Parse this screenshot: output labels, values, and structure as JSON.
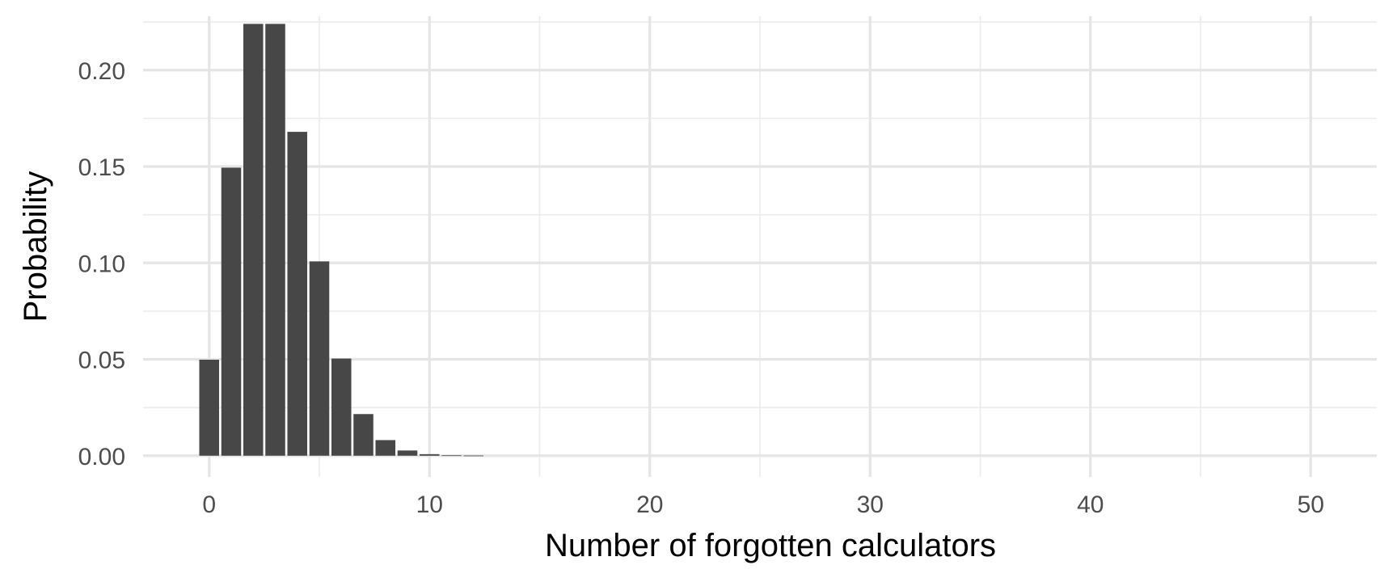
{
  "chart_data": {
    "type": "bar",
    "title": "",
    "xlabel": "Number of forgotten calculators",
    "ylabel": "Probability",
    "xlim": [
      -3,
      53
    ],
    "ylim": [
      -0.011,
      0.228
    ],
    "x_ticks": [
      0,
      10,
      20,
      30,
      40,
      50
    ],
    "y_ticks": [
      0.0,
      0.05,
      0.1,
      0.15,
      0.2
    ],
    "x_tick_labels": [
      "0",
      "10",
      "20",
      "30",
      "40",
      "50"
    ],
    "y_tick_labels": [
      "0.00",
      "0.05",
      "0.10",
      "0.15",
      "0.20"
    ],
    "grid": true,
    "bar_color": "#474747",
    "x": [
      0,
      1,
      2,
      3,
      4,
      5,
      6,
      7,
      8,
      9,
      10,
      11,
      12,
      13,
      14,
      15,
      16,
      17,
      18,
      19,
      20,
      21,
      22,
      23,
      24,
      25,
      26,
      27,
      28,
      29,
      30,
      31,
      32,
      33,
      34,
      35,
      36,
      37,
      38,
      39,
      40,
      41,
      42,
      43,
      44,
      45,
      46,
      47,
      48,
      49,
      50
    ],
    "values": [
      0.0498,
      0.1494,
      0.224,
      0.224,
      0.168,
      0.1008,
      0.0504,
      0.0216,
      0.0081,
      0.0027,
      0.0008,
      0.0002,
      0.0001,
      0,
      0,
      0,
      0,
      0,
      0,
      0,
      0,
      0,
      0,
      0,
      0,
      0,
      0,
      0,
      0,
      0,
      0,
      0,
      0,
      0,
      0,
      0,
      0,
      0,
      0,
      0,
      0,
      0,
      0,
      0,
      0,
      0,
      0,
      0,
      0,
      0,
      0
    ]
  }
}
